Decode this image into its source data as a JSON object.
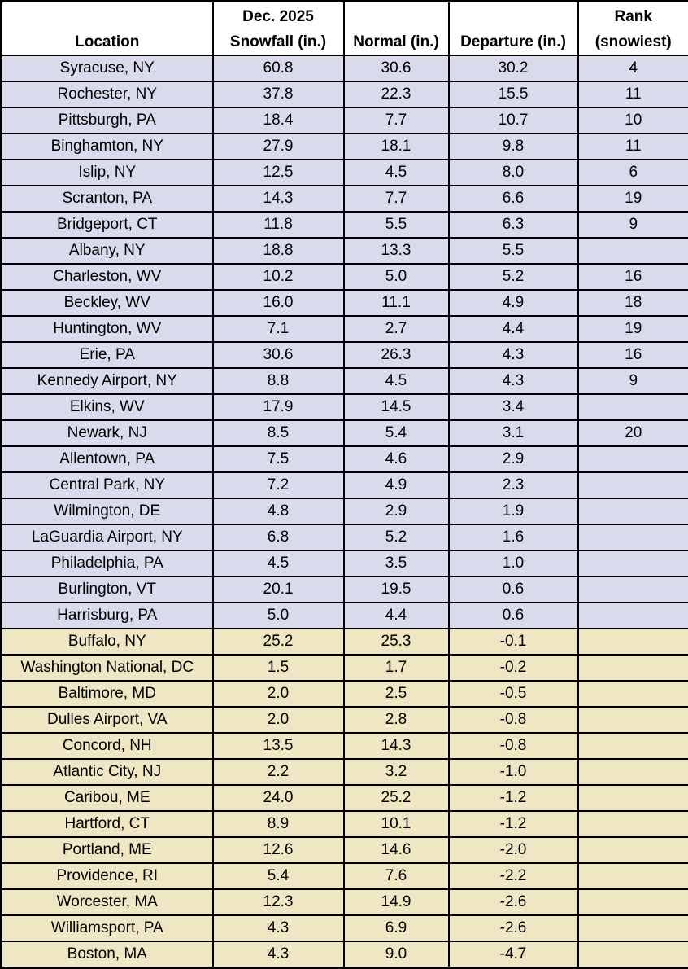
{
  "colors": {
    "above_normal_bg": "#d9daeb",
    "below_normal_bg": "#efe6c3",
    "header_bg": "#ffffff",
    "border": "#000000"
  },
  "table": {
    "headers": [
      {
        "line1": "",
        "line2": "Location"
      },
      {
        "line1": "Dec. 2025",
        "line2": "Snowfall (in.)"
      },
      {
        "line1": "",
        "line2": "Normal (in.)"
      },
      {
        "line1": "",
        "line2": "Departure (in.)"
      },
      {
        "line1": "Rank",
        "line2": "(snowiest)"
      }
    ],
    "rows": [
      {
        "location": "Syracuse, NY",
        "snowfall": "60.8",
        "normal": "30.6",
        "departure": "30.2",
        "rank": "4",
        "group": "above"
      },
      {
        "location": "Rochester, NY",
        "snowfall": "37.8",
        "normal": "22.3",
        "departure": "15.5",
        "rank": "11",
        "group": "above"
      },
      {
        "location": "Pittsburgh, PA",
        "snowfall": "18.4",
        "normal": "7.7",
        "departure": "10.7",
        "rank": "10",
        "group": "above"
      },
      {
        "location": "Binghamton, NY",
        "snowfall": "27.9",
        "normal": "18.1",
        "departure": "9.8",
        "rank": "11",
        "group": "above"
      },
      {
        "location": "Islip, NY",
        "snowfall": "12.5",
        "normal": "4.5",
        "departure": "8.0",
        "rank": "6",
        "group": "above"
      },
      {
        "location": "Scranton, PA",
        "snowfall": "14.3",
        "normal": "7.7",
        "departure": "6.6",
        "rank": "19",
        "group": "above"
      },
      {
        "location": "Bridgeport, CT",
        "snowfall": "11.8",
        "normal": "5.5",
        "departure": "6.3",
        "rank": "9",
        "group": "above"
      },
      {
        "location": "Albany, NY",
        "snowfall": "18.8",
        "normal": "13.3",
        "departure": "5.5",
        "rank": "",
        "group": "above"
      },
      {
        "location": "Charleston, WV",
        "snowfall": "10.2",
        "normal": "5.0",
        "departure": "5.2",
        "rank": "16",
        "group": "above"
      },
      {
        "location": "Beckley, WV",
        "snowfall": "16.0",
        "normal": "11.1",
        "departure": "4.9",
        "rank": "18",
        "group": "above"
      },
      {
        "location": "Huntington, WV",
        "snowfall": "7.1",
        "normal": "2.7",
        "departure": "4.4",
        "rank": "19",
        "group": "above"
      },
      {
        "location": "Erie, PA",
        "snowfall": "30.6",
        "normal": "26.3",
        "departure": "4.3",
        "rank": "16",
        "group": "above"
      },
      {
        "location": "Kennedy Airport, NY",
        "snowfall": "8.8",
        "normal": "4.5",
        "departure": "4.3",
        "rank": "9",
        "group": "above"
      },
      {
        "location": "Elkins, WV",
        "snowfall": "17.9",
        "normal": "14.5",
        "departure": "3.4",
        "rank": "",
        "group": "above"
      },
      {
        "location": "Newark, NJ",
        "snowfall": "8.5",
        "normal": "5.4",
        "departure": "3.1",
        "rank": "20",
        "group": "above"
      },
      {
        "location": "Allentown, PA",
        "snowfall": "7.5",
        "normal": "4.6",
        "departure": "2.9",
        "rank": "",
        "group": "above"
      },
      {
        "location": "Central Park, NY",
        "snowfall": "7.2",
        "normal": "4.9",
        "departure": "2.3",
        "rank": "",
        "group": "above"
      },
      {
        "location": "Wilmington, DE",
        "snowfall": "4.8",
        "normal": "2.9",
        "departure": "1.9",
        "rank": "",
        "group": "above"
      },
      {
        "location": "LaGuardia Airport, NY",
        "snowfall": "6.8",
        "normal": "5.2",
        "departure": "1.6",
        "rank": "",
        "group": "above"
      },
      {
        "location": "Philadelphia, PA",
        "snowfall": "4.5",
        "normal": "3.5",
        "departure": "1.0",
        "rank": "",
        "group": "above"
      },
      {
        "location": "Burlington, VT",
        "snowfall": "20.1",
        "normal": "19.5",
        "departure": "0.6",
        "rank": "",
        "group": "above"
      },
      {
        "location": "Harrisburg, PA",
        "snowfall": "5.0",
        "normal": "4.4",
        "departure": "0.6",
        "rank": "",
        "group": "above"
      },
      {
        "location": "Buffalo, NY",
        "snowfall": "25.2",
        "normal": "25.3",
        "departure": "-0.1",
        "rank": "",
        "group": "below"
      },
      {
        "location": "Washington National, DC",
        "snowfall": "1.5",
        "normal": "1.7",
        "departure": "-0.2",
        "rank": "",
        "group": "below"
      },
      {
        "location": "Baltimore, MD",
        "snowfall": "2.0",
        "normal": "2.5",
        "departure": "-0.5",
        "rank": "",
        "group": "below"
      },
      {
        "location": "Dulles Airport, VA",
        "snowfall": "2.0",
        "normal": "2.8",
        "departure": "-0.8",
        "rank": "",
        "group": "below"
      },
      {
        "location": "Concord, NH",
        "snowfall": "13.5",
        "normal": "14.3",
        "departure": "-0.8",
        "rank": "",
        "group": "below"
      },
      {
        "location": "Atlantic City, NJ",
        "snowfall": "2.2",
        "normal": "3.2",
        "departure": "-1.0",
        "rank": "",
        "group": "below"
      },
      {
        "location": "Caribou, ME",
        "snowfall": "24.0",
        "normal": "25.2",
        "departure": "-1.2",
        "rank": "",
        "group": "below"
      },
      {
        "location": "Hartford, CT",
        "snowfall": "8.9",
        "normal": "10.1",
        "departure": "-1.2",
        "rank": "",
        "group": "below"
      },
      {
        "location": "Portland, ME",
        "snowfall": "12.6",
        "normal": "14.6",
        "departure": "-2.0",
        "rank": "",
        "group": "below"
      },
      {
        "location": "Providence, RI",
        "snowfall": "5.4",
        "normal": "7.6",
        "departure": "-2.2",
        "rank": "",
        "group": "below"
      },
      {
        "location": "Worcester, MA",
        "snowfall": "12.3",
        "normal": "14.9",
        "departure": "-2.6",
        "rank": "",
        "group": "below"
      },
      {
        "location": "Williamsport, PA",
        "snowfall": "4.3",
        "normal": "6.9",
        "departure": "-2.6",
        "rank": "",
        "group": "below"
      },
      {
        "location": "Boston, MA",
        "snowfall": "4.3",
        "normal": "9.0",
        "departure": "-4.7",
        "rank": "",
        "group": "below"
      }
    ]
  }
}
